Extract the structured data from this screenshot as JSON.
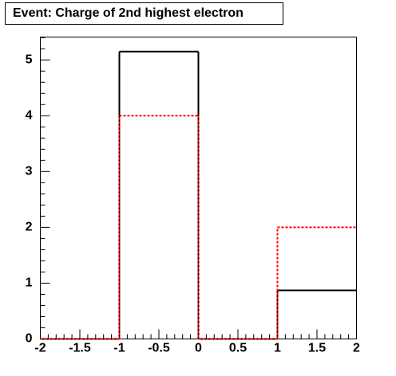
{
  "chart_data": {
    "type": "histogram",
    "title": "Event: Charge of 2nd highest electron",
    "bins": [
      -2,
      -1,
      0,
      1,
      2
    ],
    "series": [
      {
        "color": "#000000",
        "dashed": false,
        "values": [
          0,
          5.15,
          0,
          0.87
        ]
      },
      {
        "color": "#ff0000",
        "dashed": true,
        "values": [
          0,
          4.0,
          0,
          2.0
        ]
      }
    ],
    "xlim": [
      -2,
      2
    ],
    "xticks": [
      -2,
      -1.5,
      -1,
      -0.5,
      0,
      0.5,
      1,
      1.5,
      2
    ],
    "ylim": [
      0,
      5.41
    ],
    "yticks": [
      0,
      1,
      2,
      3,
      4,
      5
    ]
  }
}
